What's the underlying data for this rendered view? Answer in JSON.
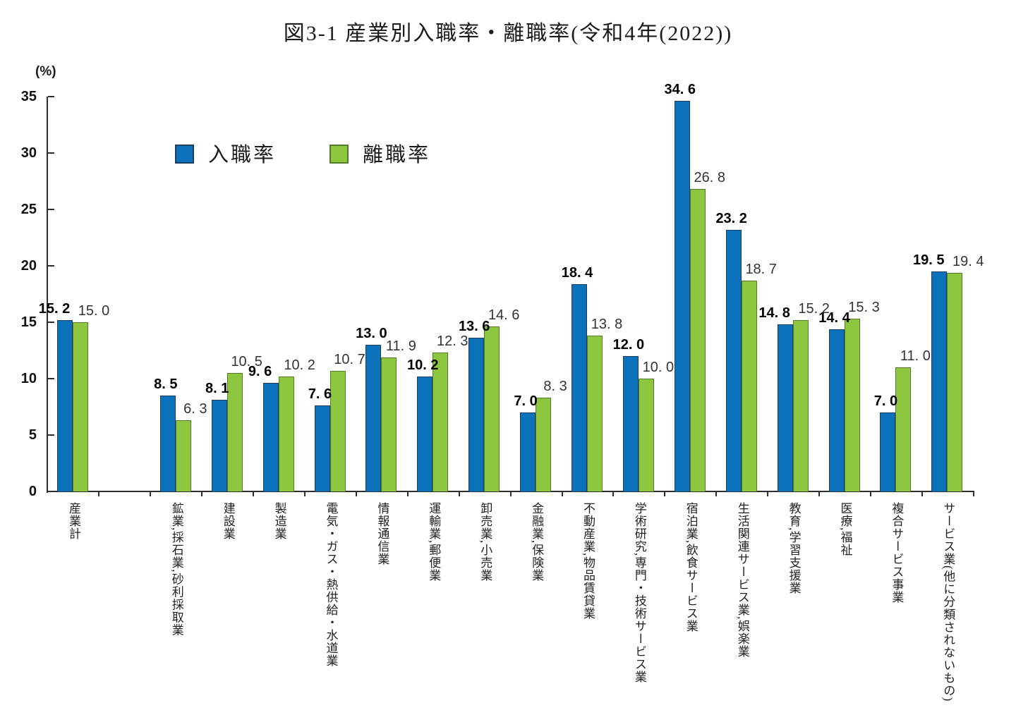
{
  "colors": {
    "entry_fill": "#0d72bc",
    "entry_border": "#1f3d5f",
    "separation_fill": "#8dc63f",
    "separation_border": "#527c28",
    "axis": "#2e2e2e"
  },
  "chart_data": {
    "type": "bar",
    "title": "図3-1 産業別入職率・離職率(令和4年(2022))",
    "xlabel": "",
    "ylabel": "(%)",
    "ylim": [
      0,
      35
    ],
    "yticks": [
      0,
      5,
      10,
      15,
      20,
      25,
      30,
      35
    ],
    "grid": false,
    "legend_position": "upper-left-inside",
    "gap_after_first_category": true,
    "categories": [
      "産業計",
      "鉱業,採石業,砂利採取業",
      "建設業",
      "製造業",
      "電気・ガス・熱供給・水道業",
      "情報通信業",
      "運輸業,郵便業",
      "卸売業,小売業",
      "金融業,保険業",
      "不動産業,物品賃貸業",
      "学術研究,専門・技術サービス業",
      "宿泊業,飲食サービス業",
      "生活関連サービス業,娯楽業",
      "教育,学習支援業",
      "医療,福祉",
      "複合サービス事業",
      "サービス業(他に分類されないもの)"
    ],
    "series": [
      {
        "name": "入職率",
        "values": [
          15.2,
          8.5,
          8.1,
          9.6,
          7.6,
          13.0,
          10.2,
          13.6,
          7.0,
          18.4,
          12.0,
          34.6,
          23.2,
          14.8,
          14.4,
          7.0,
          19.5
        ]
      },
      {
        "name": "離職率",
        "values": [
          15.0,
          6.3,
          10.5,
          10.2,
          10.7,
          11.9,
          12.3,
          14.6,
          8.3,
          13.8,
          10.0,
          26.8,
          18.7,
          15.2,
          15.3,
          11.0,
          19.4
        ]
      }
    ]
  }
}
